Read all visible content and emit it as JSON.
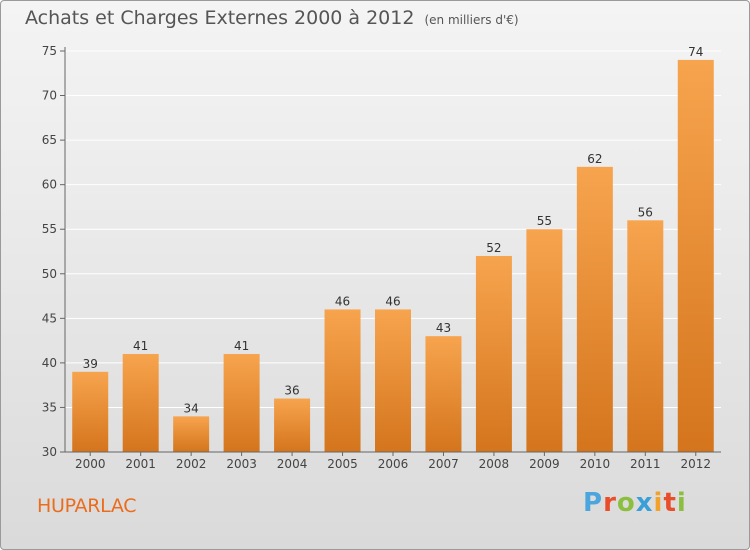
{
  "title": "Achats et Charges Externes 2000 à 2012",
  "subtitle": "(en milliers d'€)",
  "commune": "HUPARLAC",
  "logo": {
    "letters": [
      "P",
      "r",
      "o",
      "x",
      "i",
      "t",
      "i"
    ],
    "colors": [
      "#4aa6dc",
      "#e94e2b",
      "#8cbf3f",
      "#3a9fd8",
      "#f2a12b",
      "#e94e2b",
      "#8cbf3f"
    ]
  },
  "colors": {
    "bar_top": "#f7a44e",
    "bar_bottom": "#d4751d",
    "axis": "#666666",
    "grid": "#ffffff"
  },
  "chart_data": {
    "type": "bar",
    "categories": [
      "2000",
      "2001",
      "2002",
      "2003",
      "2004",
      "2005",
      "2006",
      "2007",
      "2008",
      "2009",
      "2010",
      "2011",
      "2012"
    ],
    "values": [
      39,
      41,
      34,
      41,
      36,
      46,
      46,
      43,
      52,
      55,
      62,
      56,
      74
    ],
    "title": "Achats et Charges Externes 2000 à 2012",
    "subtitle": "(en milliers d'€)",
    "ylim": [
      30,
      75
    ],
    "yticks": [
      30,
      35,
      40,
      45,
      50,
      55,
      60,
      65,
      70,
      75
    ],
    "grid": true,
    "data_labels": true
  }
}
